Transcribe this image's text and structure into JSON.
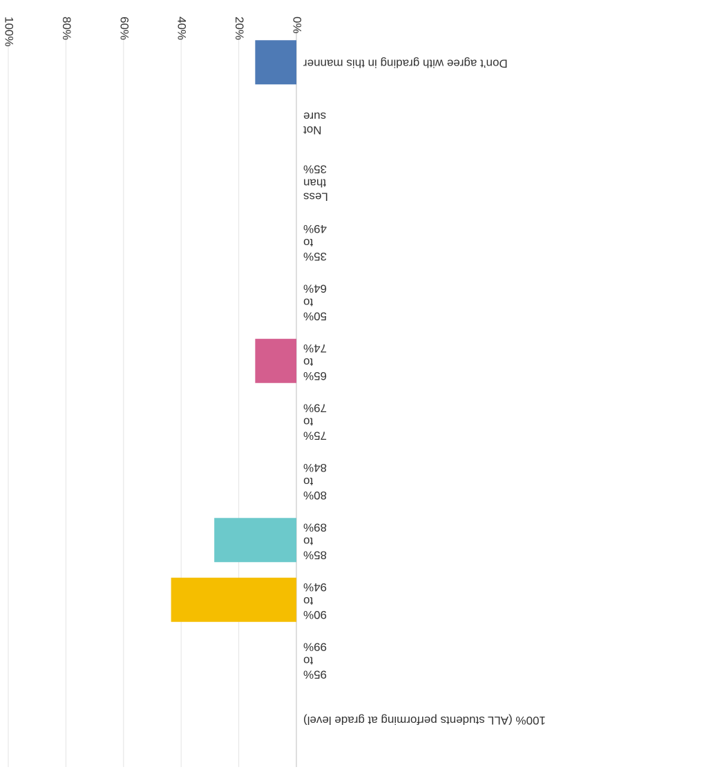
{
  "chart_data": {
    "type": "bar",
    "orientation": "horizontal",
    "categories": [
      "100% (ALL students performing at grade level)",
      "95% to 99%",
      "90% to 94%",
      "85% to 89%",
      "80% to 84%",
      "75% to 79%",
      "65% to 74%",
      "50% to 64%",
      "35% to 49%",
      "Less than 35%",
      "Not sure",
      "Don't agree with grading in this manner"
    ],
    "category_lines": [
      [
        "100% (ALL students performing at grade level)"
      ],
      [
        "95%",
        "to",
        "99%"
      ],
      [
        "90%",
        "to",
        "94%"
      ],
      [
        "85%",
        "to",
        "89%"
      ],
      [
        "80%",
        "to",
        "84%"
      ],
      [
        "75%",
        "to",
        "79%"
      ],
      [
        "65%",
        "to",
        "74%"
      ],
      [
        "50%",
        "to",
        "64%"
      ],
      [
        "35%",
        "to",
        "49%"
      ],
      [
        "Less",
        "than",
        "35%"
      ],
      [
        "Not",
        "sure"
      ],
      [
        "Don’t agree with grading in this manner"
      ]
    ],
    "values": [
      0,
      0,
      43.5,
      28.5,
      0,
      0,
      14.3,
      0,
      0,
      0,
      0,
      14.3
    ],
    "value_unit": "%",
    "bar_colors": [
      "#cccccc",
      "#cccccc",
      "#f5be00",
      "#6cc9cb",
      "#cccccc",
      "#cccccc",
      "#d45e8e",
      "#cccccc",
      "#cccccc",
      "#cccccc",
      "#cccccc",
      "#4e7ab5"
    ],
    "xlim": [
      0,
      100
    ],
    "ticks": [
      "0%",
      "20%",
      "40%",
      "60%",
      "80%",
      "100%"
    ],
    "grid": true,
    "legend": "none",
    "image_rotation": "180deg"
  }
}
